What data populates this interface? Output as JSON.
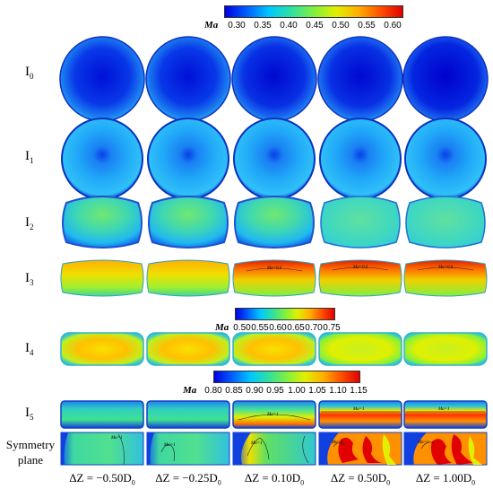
{
  "colorbars": [
    {
      "title": "Ma",
      "labels": [
        "0.30",
        "0.35",
        "0.40",
        "0.45",
        "0.50",
        "0.55",
        "0.60"
      ]
    },
    {
      "title": "Ma",
      "labels": [
        "0.50",
        "0.55",
        "0.60",
        "0.65",
        "0.70",
        "0.75"
      ]
    },
    {
      "title": "Ma",
      "labels": [
        "0.80",
        "0.85",
        "0.90",
        "0.95",
        "1.00",
        "1.05",
        "1.10",
        "1.15"
      ]
    }
  ],
  "rows": [
    {
      "base": "I",
      "sub": "0"
    },
    {
      "base": "I",
      "sub": "1"
    },
    {
      "base": "I",
      "sub": "2"
    },
    {
      "base": "I",
      "sub": "3"
    },
    {
      "base": "I",
      "sub": "4"
    },
    {
      "base": "I",
      "sub": "5"
    }
  ],
  "symmetry_label": [
    "Symmetry",
    "plane"
  ],
  "columns": [
    {
      "prefix": "ΔZ = −0.50D",
      "sub": "0"
    },
    {
      "prefix": "ΔZ = −0.25D",
      "sub": "0"
    },
    {
      "prefix": "ΔZ = 0.10D",
      "sub": "0"
    },
    {
      "prefix": "ΔZ = 0.50D",
      "sub": "0"
    },
    {
      "prefix": "ΔZ = 1.00D",
      "sub": "0"
    }
  ],
  "annotations": {
    "i3_contour": "Ma=0.6",
    "i5_contour": "Ma=1",
    "sym_contour": "Ma=1"
  },
  "colors": {
    "jet": [
      "#0000e0",
      "#0060ff",
      "#00c8ff",
      "#30e0a0",
      "#80f040",
      "#e0f000",
      "#ffb000",
      "#ff5000",
      "#e00000"
    ]
  }
}
